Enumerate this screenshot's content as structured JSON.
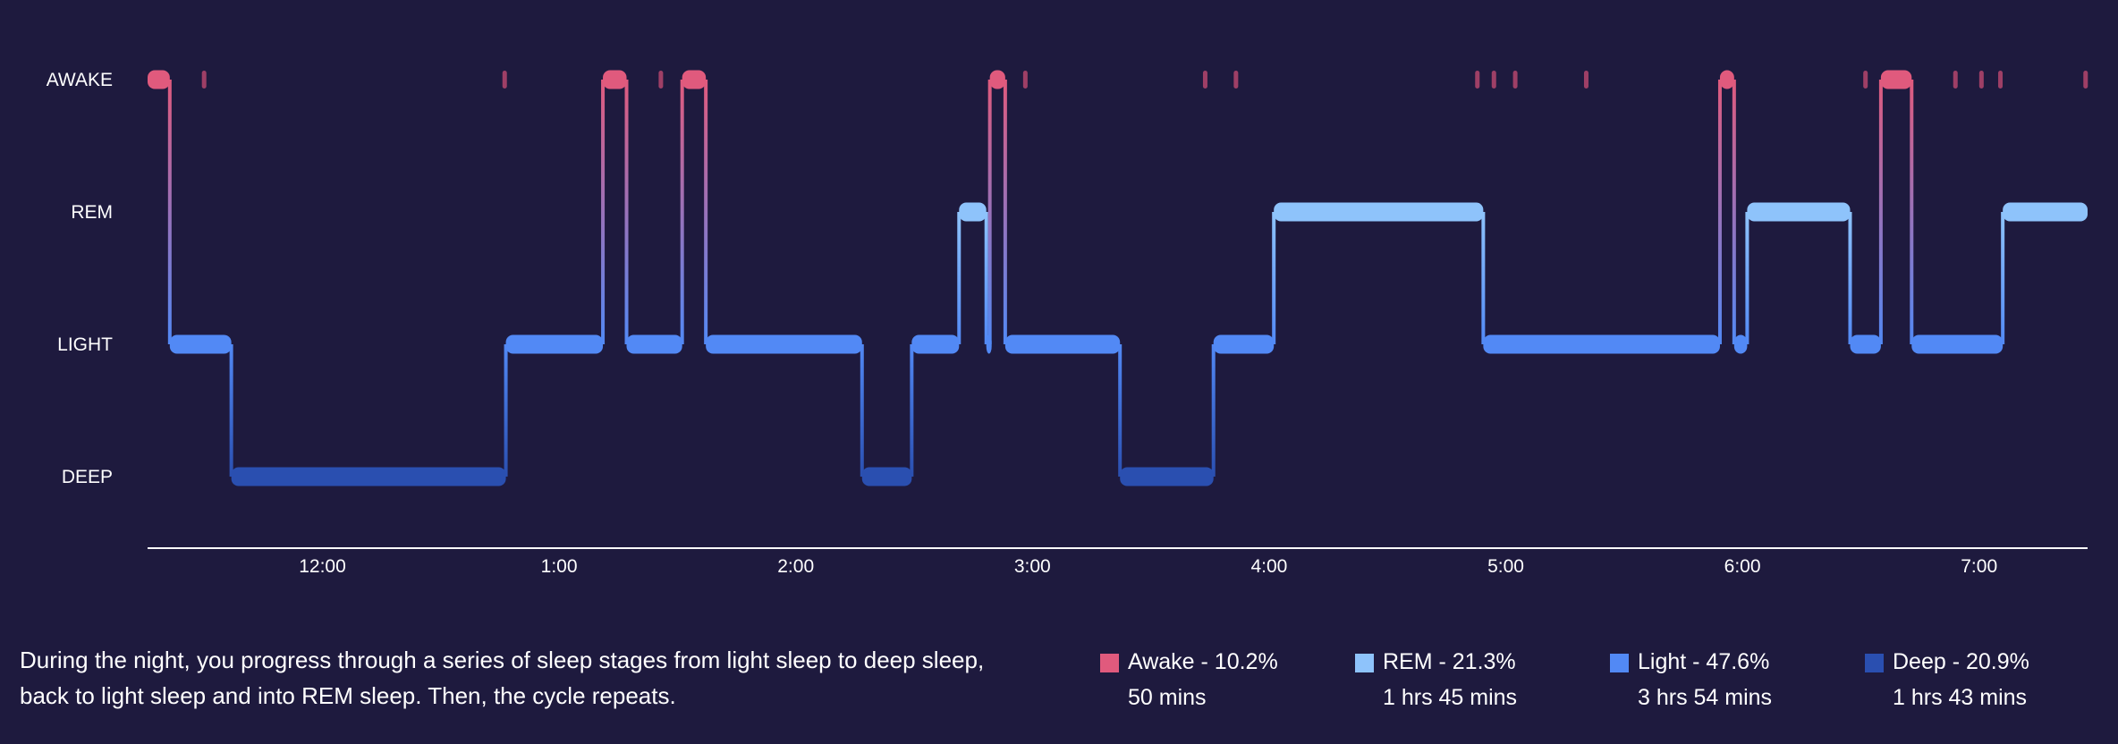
{
  "chart_data": {
    "type": "step",
    "stages": [
      "AWAKE",
      "REM",
      "LIGHT",
      "DEEP"
    ],
    "x_ticks": [
      "12:00",
      "1:00",
      "2:00",
      "3:00",
      "4:00",
      "5:00",
      "6:00",
      "7:00"
    ],
    "x_tick_hours": [
      0,
      1,
      2,
      3,
      4,
      5,
      6,
      7
    ],
    "xlim_hours": [
      -0.74,
      7.46
    ],
    "segments": [
      {
        "stage": "AWAKE",
        "start": -0.74,
        "end": -0.645
      },
      {
        "stage": "LIGHT",
        "start": -0.645,
        "end": -0.385
      },
      {
        "stage": "DEEP",
        "start": -0.385,
        "end": 0.775
      },
      {
        "stage": "LIGHT",
        "start": 0.775,
        "end": 1.185
      },
      {
        "stage": "AWAKE",
        "start": 1.185,
        "end": 1.285
      },
      {
        "stage": "LIGHT",
        "start": 1.285,
        "end": 1.52
      },
      {
        "stage": "AWAKE",
        "start": 1.52,
        "end": 1.62
      },
      {
        "stage": "LIGHT",
        "start": 1.62,
        "end": 2.28
      },
      {
        "stage": "DEEP",
        "start": 2.28,
        "end": 2.49
      },
      {
        "stage": "LIGHT",
        "start": 2.49,
        "end": 2.69
      },
      {
        "stage": "REM",
        "start": 2.69,
        "end": 2.805
      },
      {
        "stage": "LIGHT",
        "start": 2.805,
        "end": 2.82
      },
      {
        "stage": "AWAKE",
        "start": 2.82,
        "end": 2.885
      },
      {
        "stage": "LIGHT",
        "start": 2.885,
        "end": 3.37
      },
      {
        "stage": "DEEP",
        "start": 3.37,
        "end": 3.765
      },
      {
        "stage": "LIGHT",
        "start": 3.765,
        "end": 4.02
      },
      {
        "stage": "REM",
        "start": 4.02,
        "end": 4.905
      },
      {
        "stage": "LIGHT",
        "start": 4.905,
        "end": 5.905
      },
      {
        "stage": "AWAKE",
        "start": 5.905,
        "end": 5.965
      },
      {
        "stage": "LIGHT",
        "start": 5.965,
        "end": 6.02
      },
      {
        "stage": "REM",
        "start": 6.02,
        "end": 6.455
      },
      {
        "stage": "LIGHT",
        "start": 6.455,
        "end": 6.585
      },
      {
        "stage": "AWAKE",
        "start": 6.585,
        "end": 6.715
      },
      {
        "stage": "LIGHT",
        "start": 6.715,
        "end": 7.1
      },
      {
        "stage": "REM",
        "start": 7.1,
        "end": 7.46
      }
    ],
    "brief_awakenings_hours": [
      -0.5,
      0.77,
      1.43,
      2.97,
      3.73,
      3.86,
      4.88,
      4.95,
      5.04,
      5.34,
      6.52,
      6.9,
      7.01,
      7.09,
      7.45
    ],
    "summary": [
      {
        "stage": "Awake",
        "percent": 10.2,
        "label": "Awake - 10.2%",
        "duration": "50 mins",
        "color": "#e05a7d"
      },
      {
        "stage": "REM",
        "percent": 21.3,
        "label": "REM - 21.3%",
        "duration": "1 hrs 45 mins",
        "color": "#8ec3fb"
      },
      {
        "stage": "Light",
        "percent": 47.6,
        "label": "Light - 47.6%",
        "duration": "3 hrs 54 mins",
        "color": "#5289f5"
      },
      {
        "stage": "Deep",
        "percent": 20.9,
        "label": "Deep - 20.9%",
        "duration": "1 hrs 43 mins",
        "color": "#2a4fb0"
      }
    ],
    "colors": {
      "AWAKE": "#e05a7d",
      "REM": "#8ec3fb",
      "LIGHT": "#5289f5",
      "DEEP": "#2a4fb0",
      "brief_awake": "#9e3f66",
      "background": "#1e1a3e",
      "axis": "#ffffff"
    }
  },
  "description": "During the night, you progress through a series of sleep stages from light sleep to deep sleep, back to light sleep and into REM sleep. Then, the cycle repeats."
}
